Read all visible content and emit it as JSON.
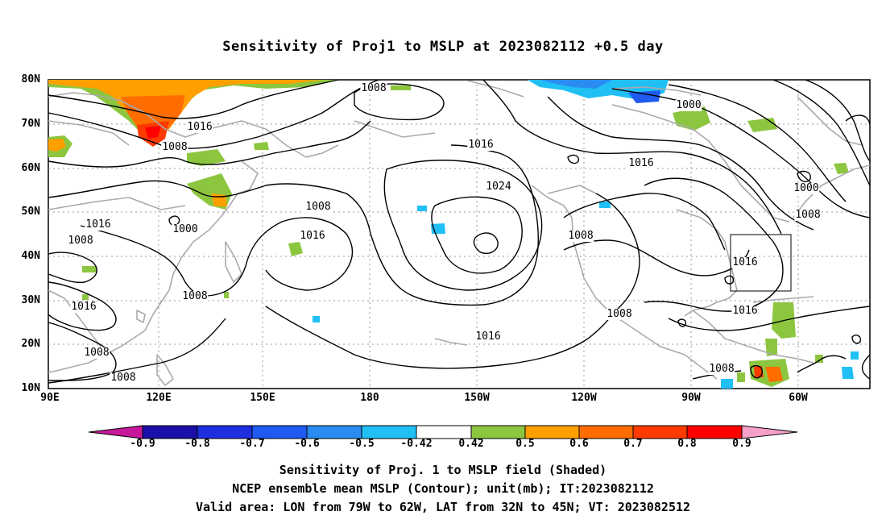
{
  "title": "Sensitivity of Proj1 to MSLP at 2023082112 +0.5 day",
  "lat_labels": [
    "80N",
    "70N",
    "60N",
    "50N",
    "40N",
    "30N",
    "20N",
    "10N"
  ],
  "lon_labels": [
    "90E",
    "120E",
    "150E",
    "180",
    "150W",
    "120W",
    "90W",
    "60W"
  ],
  "contour_labels": [
    {
      "text": "1008"
    },
    {
      "text": "1016"
    },
    {
      "text": "1008"
    },
    {
      "text": "1000"
    },
    {
      "text": "1016"
    },
    {
      "text": "1008"
    },
    {
      "text": "1000"
    },
    {
      "text": "1016"
    },
    {
      "text": "1008"
    },
    {
      "text": "1016"
    },
    {
      "text": "1008"
    },
    {
      "text": "1016"
    },
    {
      "text": "1024"
    },
    {
      "text": "1016"
    },
    {
      "text": "1008"
    },
    {
      "text": "1008"
    },
    {
      "text": "1016"
    },
    {
      "text": "1000"
    },
    {
      "text": "1008"
    },
    {
      "text": "1016"
    },
    {
      "text": "1016"
    },
    {
      "text": "1008"
    },
    {
      "text": "1008"
    },
    {
      "text": "1008"
    }
  ],
  "colorbar": {
    "labels": [
      "-0.9",
      "-0.8",
      "-0.7",
      "-0.6",
      "-0.5",
      "-0.42",
      "0.42",
      "0.5",
      "0.6",
      "0.7",
      "0.8",
      "0.9"
    ],
    "colors": [
      "#1a10a8",
      "#1f2ee0",
      "#1f5bf0",
      "#2a8cf0",
      "#20c0f5",
      "#ffffff",
      "#8cc63f",
      "#ff9f00",
      "#ff6d00",
      "#ff3a00",
      "#ff0000"
    ],
    "under_color": "#c8189a",
    "over_color": "#f4a0c8"
  },
  "footer": [
    "Sensitivity of Proj. 1 to MSLP field (Shaded)",
    "NCEP ensemble mean MSLP (Contour); unit(mb); IT:2023082112",
    "Valid area: LON from 79W to 62W, LAT from 32N to 45N; VT: 2023082512"
  ],
  "valid_area": {
    "lon_min": -79,
    "lon_max": -62,
    "lat_min": 32,
    "lat_max": 45
  },
  "map_extent": {
    "lon_min": 90,
    "lon_max": 313,
    "lat_min": 10,
    "lat_max": 80
  }
}
